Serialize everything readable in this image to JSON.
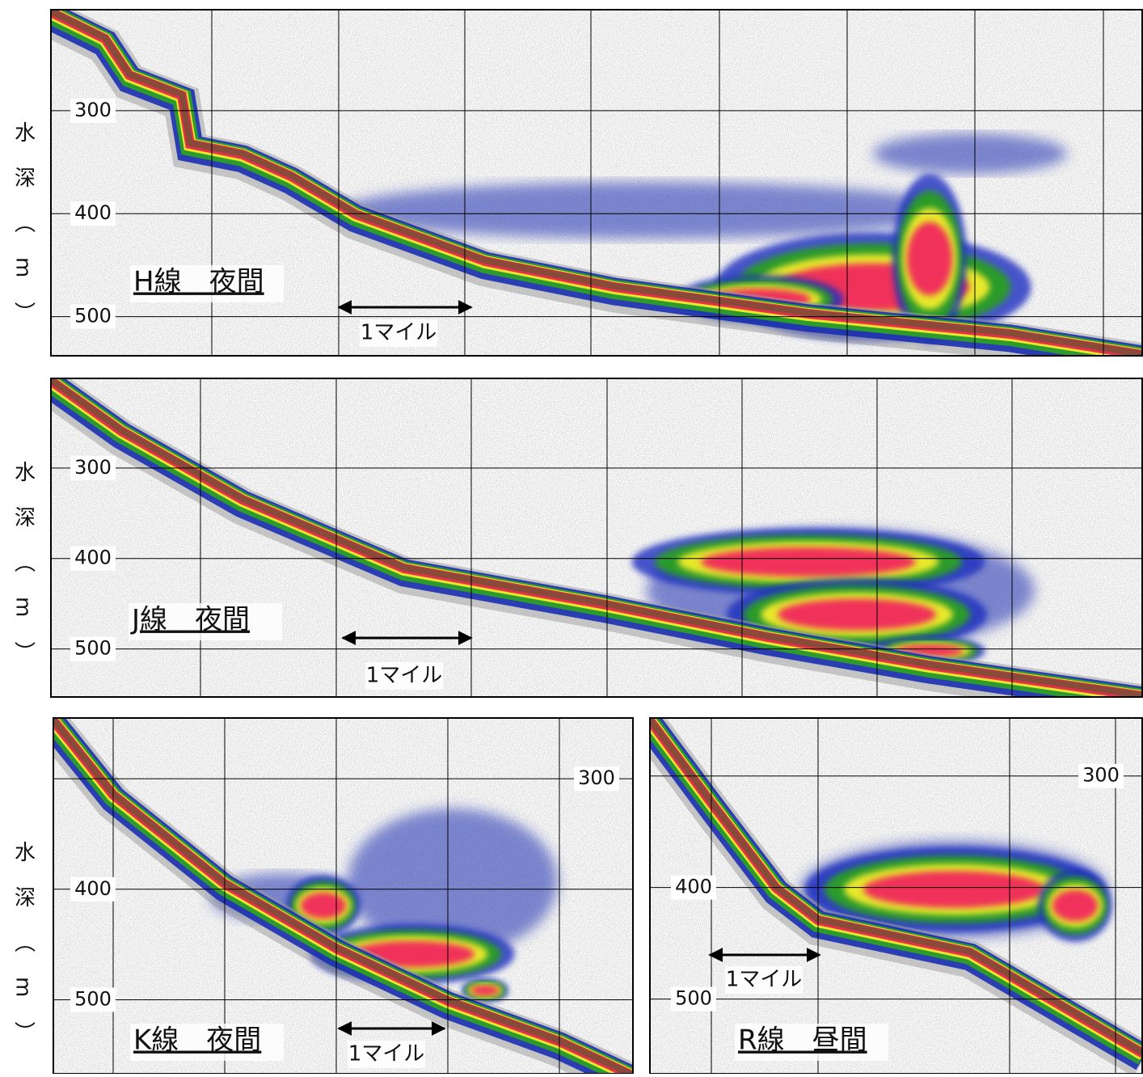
{
  "y_axis_label": "水深（m）",
  "panels": [
    {
      "title": "H線　夜間",
      "scale_label": "1マイル",
      "depth_range": [
        202,
        538
      ],
      "depth_ticks": [
        300,
        400,
        500
      ]
    },
    {
      "title": "J線　夜間",
      "scale_label": "1マイル",
      "depth_range": [
        201,
        553
      ],
      "depth_ticks": [
        300,
        400,
        500
      ]
    },
    {
      "title": "K線　夜間",
      "scale_label": "1マイル",
      "depth_range": [
        245,
        567
      ],
      "depth_ticks": [
        300,
        400,
        500
      ]
    },
    {
      "title": "R線　昼間",
      "scale_label": "1マイル",
      "depth_range": [
        248,
        567
      ],
      "depth_ticks": [
        300,
        400,
        500
      ]
    }
  ]
}
